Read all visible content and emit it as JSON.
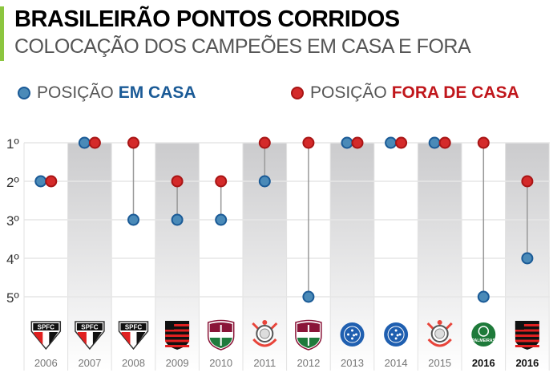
{
  "header": {
    "title": "BRASILEIRÃO PONTOS CORRIDOS",
    "subtitle": "COLOCAÇÃO DOS CAMPEÕES EM CASA E FORA"
  },
  "legend": {
    "home": {
      "prefix": "POSIÇÃO",
      "emph": "EM CASA",
      "color": "#1a5a96"
    },
    "away": {
      "prefix": "POSIÇÃO",
      "emph": "FORA DE CASA",
      "color": "#c0161b"
    }
  },
  "colors": {
    "home_fill": "#4a8ab8",
    "home_stroke": "#1a5a96",
    "away_fill": "#d42a2a",
    "away_stroke": "#a81515",
    "accent": "#8cc63f"
  },
  "chart_data": {
    "type": "scatter",
    "title": "BRASILEIRÃO PONTOS CORRIDOS",
    "subtitle": "COLOCAÇÃO DOS CAMPEÕES EM CASA E FORA",
    "yticks": [
      "1º",
      "2º",
      "3º",
      "4º",
      "5º"
    ],
    "ylim": [
      1,
      5
    ],
    "y_inverted": true,
    "categories": [
      "2006",
      "2007",
      "2008",
      "2009",
      "2010",
      "2011",
      "2012",
      "2013",
      "2014",
      "2015",
      "2016",
      "2016"
    ],
    "bold_categories": [
      10,
      11
    ],
    "crests": [
      "spfc-crest",
      "spfc-crest",
      "spfc-crest",
      "flamengo-crest",
      "fluminense-crest",
      "corinthians-crest",
      "fluminense-crest",
      "cruzeiro-crest",
      "cruzeiro-crest",
      "corinthians-crest",
      "palmeiras-crest",
      "flamengo-crest"
    ],
    "crest_lettering": {
      "spfc-crest": "SPFC",
      "palmeiras-crest": "PALMEIRAS"
    },
    "series": [
      {
        "name": "POSIÇÃO EM CASA",
        "values": [
          2,
          1,
          3,
          3,
          3,
          2,
          5,
          1,
          1,
          1,
          5,
          4
        ]
      },
      {
        "name": "POSIÇÃO FORA DE CASA",
        "values": [
          2,
          1,
          1,
          2,
          2,
          1,
          1,
          1,
          1,
          1,
          1,
          2
        ]
      }
    ],
    "grid": true,
    "legend_position": "top"
  }
}
